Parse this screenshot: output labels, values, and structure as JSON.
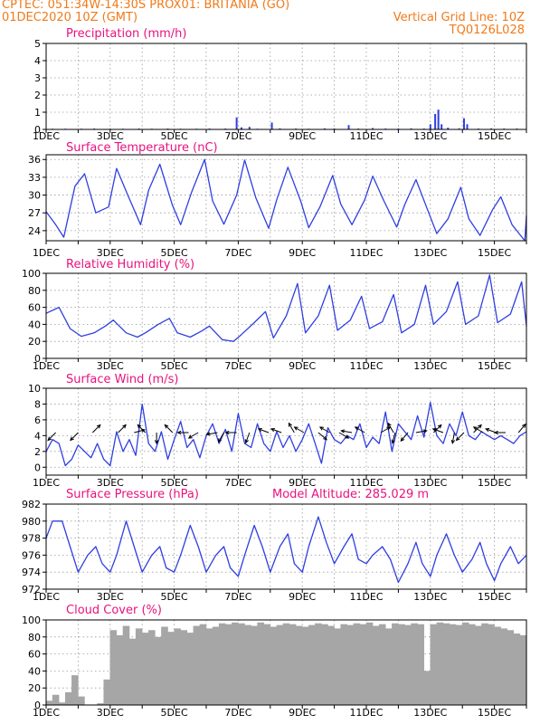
{
  "header": {
    "line1": "CPTEC:   051:34W-14:30S   PROX01: BRITANIA (GO)",
    "line2": "01DEC2020 10Z (GMT)",
    "grid_note": "Vertical Grid Line: 10Z",
    "code": "TQ0126L028"
  },
  "colors": {
    "header": "#f07a1a",
    "title": "#e8127e",
    "line": "#2f3fe0",
    "cloud": "#a6a6a6",
    "precip": "#2f3fe0"
  },
  "x_axis": {
    "labels": [
      "1DEC",
      "3DEC",
      "5DEC",
      "7DEC",
      "9DEC",
      "11DEC",
      "13DEC",
      "15DEC"
    ],
    "cut_label": "2020"
  },
  "chart_data": [
    {
      "type": "bar",
      "title": "Precipitation (mm/h)",
      "ylim": [
        0,
        5
      ],
      "yticks": [
        0,
        1,
        2,
        3,
        4,
        5
      ],
      "xlim": [
        0,
        15
      ],
      "x": [
        0.2,
        0.6,
        1.1,
        1.5,
        2.0,
        2.4,
        2.9,
        3.3,
        3.8,
        4.2,
        4.7,
        5.1,
        5.6,
        5.95,
        6.1,
        6.35,
        6.6,
        7.05,
        7.3,
        7.8,
        8.2,
        8.7,
        9.0,
        9.45,
        9.75,
        10.2,
        10.6,
        11.0,
        11.4,
        11.8,
        12.0,
        12.15,
        12.25,
        12.35,
        12.55,
        12.9,
        13.05,
        13.15,
        13.5,
        13.9,
        14.3,
        14.7
      ],
      "values": [
        0.04,
        0.04,
        0.04,
        0.05,
        0.04,
        0.04,
        0.05,
        0.04,
        0.05,
        0.04,
        0.04,
        0.05,
        0.05,
        0.7,
        0.12,
        0.15,
        0.04,
        0.4,
        0.06,
        0.05,
        0.04,
        0.06,
        0.05,
        0.25,
        0.05,
        0.08,
        0.05,
        0.05,
        0.06,
        0.05,
        0.3,
        0.9,
        1.15,
        0.3,
        0.1,
        0.06,
        0.65,
        0.3,
        0.05,
        0.06,
        0.05,
        0.05
      ]
    },
    {
      "type": "line",
      "title": "Surface Temperature (nC)",
      "ylim": [
        22.3,
        36.8
      ],
      "yticks": [
        24,
        27,
        30,
        33,
        36
      ],
      "xlim": [
        0,
        15
      ],
      "x": [
        0,
        0.3,
        0.55,
        0.9,
        1.2,
        1.55,
        1.95,
        2.2,
        2.55,
        2.95,
        3.2,
        3.55,
        3.95,
        4.2,
        4.55,
        4.95,
        5.2,
        5.55,
        5.95,
        6.2,
        6.55,
        6.95,
        7.2,
        7.55,
        7.95,
        8.2,
        8.55,
        8.95,
        9.2,
        9.55,
        9.95,
        10.2,
        10.55,
        10.95,
        11.2,
        11.55,
        11.95,
        12.2,
        12.55,
        12.95,
        13.2,
        13.55,
        13.95,
        14.2,
        14.55,
        14.95,
        15.0
      ],
      "values": [
        27.2,
        25.0,
        22.9,
        31.5,
        33.6,
        27.0,
        28.0,
        34.5,
        30.0,
        25.0,
        30.8,
        35.2,
        28.2,
        25.0,
        30.6,
        36.0,
        29.0,
        25.1,
        30.0,
        35.9,
        29.5,
        24.4,
        29.2,
        34.7,
        29.0,
        24.5,
        28.0,
        33.3,
        28.5,
        25.0,
        29.2,
        33.2,
        29.0,
        24.6,
        28.4,
        32.6,
        27.0,
        23.5,
        26.0,
        31.3,
        26.0,
        23.2,
        27.6,
        29.7,
        25.0,
        22.0,
        26.5
      ]
    },
    {
      "type": "line",
      "title": "Relative Humidity (%)",
      "ylim": [
        0,
        100
      ],
      "yticks": [
        0,
        20,
        40,
        60,
        80,
        100
      ],
      "xlim": [
        0,
        15
      ],
      "x": [
        0,
        0.4,
        0.75,
        1.1,
        1.5,
        1.85,
        2.1,
        2.5,
        2.85,
        3.1,
        3.5,
        3.85,
        4.1,
        4.5,
        4.85,
        5.1,
        5.5,
        5.85,
        6.1,
        6.5,
        6.85,
        7.1,
        7.5,
        7.85,
        8.1,
        8.5,
        8.85,
        9.1,
        9.5,
        9.85,
        10.1,
        10.5,
        10.85,
        11.1,
        11.5,
        11.85,
        12.1,
        12.5,
        12.85,
        13.1,
        13.5,
        13.85,
        14.1,
        14.5,
        14.85,
        15.0
      ],
      "values": [
        53,
        60,
        35,
        26,
        30,
        38,
        45,
        30,
        25,
        30,
        40,
        47,
        30,
        25,
        32,
        38,
        22,
        20,
        28,
        42,
        55,
        24,
        50,
        88,
        30,
        50,
        86,
        33,
        45,
        73,
        35,
        43,
        75,
        30,
        40,
        86,
        40,
        55,
        90,
        40,
        50,
        98,
        42,
        52,
        90,
        38
      ]
    },
    {
      "type": "line",
      "title": "Surface Wind (m/s)",
      "ylim": [
        -1,
        10
      ],
      "yticks": [
        0,
        2,
        4,
        6,
        8,
        10
      ],
      "xlim": [
        0,
        15
      ],
      "x": [
        0,
        0.2,
        0.4,
        0.6,
        0.8,
        1.0,
        1.2,
        1.4,
        1.6,
        1.8,
        2.0,
        2.2,
        2.4,
        2.6,
        2.8,
        3.0,
        3.2,
        3.4,
        3.6,
        3.8,
        4.0,
        4.2,
        4.4,
        4.6,
        4.8,
        5.0,
        5.2,
        5.4,
        5.6,
        5.8,
        6.0,
        6.2,
        6.4,
        6.6,
        6.8,
        7.0,
        7.2,
        7.4,
        7.6,
        7.8,
        8.0,
        8.2,
        8.4,
        8.6,
        8.8,
        9.0,
        9.2,
        9.4,
        9.6,
        9.8,
        10.0,
        10.2,
        10.4,
        10.6,
        10.8,
        11.0,
        11.2,
        11.4,
        11.6,
        11.8,
        12.0,
        12.2,
        12.4,
        12.6,
        12.8,
        13.0,
        13.2,
        13.4,
        13.6,
        13.8,
        14.0,
        14.2,
        14.4,
        14.6,
        14.8,
        15.0
      ],
      "values": [
        2.0,
        3.5,
        3.0,
        0.2,
        1.0,
        2.8,
        2.0,
        1.2,
        3.0,
        1.0,
        0.2,
        4.5,
        2.0,
        3.5,
        1.5,
        8.0,
        3.0,
        2.0,
        4.5,
        1.0,
        3.5,
        5.8,
        2.5,
        3.5,
        1.2,
        4.0,
        5.5,
        3.0,
        4.8,
        2.0,
        6.8,
        3.0,
        2.5,
        5.5,
        3.0,
        2.0,
        4.5,
        2.5,
        4.0,
        2.0,
        3.5,
        5.5,
        3.0,
        0.5,
        5.0,
        3.5,
        3.0,
        4.0,
        3.5,
        5.5,
        2.5,
        3.8,
        3.0,
        7.0,
        2.0,
        5.5,
        4.5,
        3.5,
        6.5,
        3.8,
        8.2,
        4.0,
        3.0,
        5.5,
        4.0,
        7.0,
        4.0,
        3.5,
        4.5,
        4.0,
        3.5,
        4.0,
        3.5,
        3.0,
        4.0,
        4.5
      ]
    },
    {
      "type": "line",
      "title": "Surface Pressure (hPa)",
      "annotation": "Model Altitude: 285.029 m",
      "ylim": [
        972,
        982
      ],
      "yticks": [
        972,
        974,
        976,
        978,
        980,
        982
      ],
      "xlim": [
        0,
        15
      ],
      "x": [
        0,
        0.2,
        0.5,
        0.75,
        1.0,
        1.3,
        1.55,
        1.75,
        2.0,
        2.2,
        2.5,
        2.75,
        3.0,
        3.3,
        3.55,
        3.75,
        4.0,
        4.2,
        4.5,
        4.75,
        5.0,
        5.3,
        5.55,
        5.75,
        6.0,
        6.2,
        6.5,
        6.75,
        7.0,
        7.3,
        7.55,
        7.75,
        8.0,
        8.2,
        8.5,
        8.75,
        9.0,
        9.3,
        9.55,
        9.75,
        10.0,
        10.2,
        10.5,
        10.75,
        11.0,
        11.3,
        11.55,
        11.75,
        12.0,
        12.2,
        12.5,
        12.75,
        13.0,
        13.3,
        13.55,
        13.75,
        14.0,
        14.2,
        14.5,
        14.75,
        15.0
      ],
      "values": [
        978.0,
        980.0,
        980.0,
        977.0,
        974.0,
        976.0,
        977.0,
        975.0,
        974.0,
        976.0,
        980.0,
        977.0,
        974.0,
        976.0,
        977.0,
        974.5,
        974.0,
        976.0,
        979.5,
        977.0,
        974.0,
        976.0,
        977.0,
        974.5,
        973.5,
        976.0,
        979.5,
        977.0,
        974.0,
        977.0,
        978.5,
        975.0,
        974.0,
        977.0,
        980.5,
        977.5,
        975.0,
        977.0,
        978.5,
        975.5,
        975.0,
        976.0,
        977.0,
        975.5,
        972.8,
        975.0,
        977.5,
        975.0,
        973.5,
        976.0,
        978.5,
        976.0,
        974.0,
        975.5,
        977.5,
        975.0,
        973.0,
        975.0,
        977.0,
        975.0,
        976.0
      ]
    },
    {
      "type": "bar",
      "title": "Cloud Cover (%)",
      "ylim": [
        0,
        100
      ],
      "yticks": [
        0,
        20,
        40,
        60,
        80,
        100
      ],
      "xlim": [
        0,
        15
      ],
      "x": [
        0.1,
        0.3,
        0.5,
        0.7,
        0.9,
        1.1,
        1.3,
        1.5,
        1.7,
        1.9,
        2.1,
        2.3,
        2.5,
        2.7,
        2.9,
        3.1,
        3.3,
        3.5,
        3.7,
        3.9,
        4.1,
        4.3,
        4.5,
        4.7,
        4.9,
        5.1,
        5.3,
        5.5,
        5.7,
        5.9,
        6.1,
        6.3,
        6.5,
        6.7,
        6.9,
        7.1,
        7.3,
        7.5,
        7.7,
        7.9,
        8.1,
        8.3,
        8.5,
        8.7,
        8.9,
        9.1,
        9.3,
        9.5,
        9.7,
        9.9,
        10.1,
        10.3,
        10.5,
        10.7,
        10.9,
        11.1,
        11.3,
        11.5,
        11.7,
        11.9,
        12.1,
        12.3,
        12.5,
        12.7,
        12.9,
        13.1,
        13.3,
        13.5,
        13.7,
        13.9,
        14.1,
        14.3,
        14.5,
        14.7,
        14.9
      ],
      "values": [
        5,
        12,
        3,
        15,
        35,
        10,
        0,
        0,
        2,
        30,
        88,
        82,
        93,
        78,
        90,
        85,
        88,
        80,
        92,
        86,
        90,
        88,
        85,
        93,
        95,
        90,
        92,
        96,
        95,
        97,
        96,
        94,
        93,
        97,
        95,
        92,
        94,
        96,
        95,
        93,
        92,
        94,
        96,
        95,
        93,
        90,
        95,
        94,
        96,
        95,
        97,
        93,
        95,
        90,
        96,
        95,
        94,
        96,
        95,
        40,
        95,
        97,
        96,
        95,
        94,
        97,
        95,
        93,
        96,
        95,
        92,
        90,
        88,
        84,
        82
      ]
    }
  ],
  "wind_arrows": [
    {
      "x": 0.3,
      "dir": 225
    },
    {
      "x": 1.0,
      "dir": 225
    },
    {
      "x": 1.45,
      "dir": 45
    },
    {
      "x": 2.25,
      "dir": 45
    },
    {
      "x": 2.75,
      "dir": 75
    },
    {
      "x": 3.1,
      "dir": 315
    },
    {
      "x": 3.45,
      "dir": 180
    },
    {
      "x": 3.95,
      "dir": 315
    },
    {
      "x": 4.45,
      "dir": 270
    },
    {
      "x": 4.75,
      "dir": 240
    },
    {
      "x": 5.35,
      "dir": 260
    },
    {
      "x": 5.55,
      "dir": 210
    },
    {
      "x": 5.95,
      "dir": 270
    },
    {
      "x": 6.35,
      "dir": 200
    },
    {
      "x": 6.95,
      "dir": 290
    },
    {
      "x": 7.35,
      "dir": 290
    },
    {
      "x": 7.75,
      "dir": 330
    },
    {
      "x": 8.05,
      "dir": 300
    },
    {
      "x": 8.5,
      "dir": 130
    },
    {
      "x": 8.85,
      "dir": 300
    },
    {
      "x": 9.15,
      "dir": 120
    },
    {
      "x": 9.55,
      "dir": 280
    },
    {
      "x": 9.95,
      "dir": 300
    },
    {
      "x": 10.45,
      "dir": 60
    },
    {
      "x": 10.85,
      "dir": 330
    },
    {
      "x": 10.9,
      "dir": 195
    },
    {
      "x": 11.3,
      "dir": 220
    },
    {
      "x": 11.55,
      "dir": 80
    },
    {
      "x": 12.1,
      "dir": 45
    },
    {
      "x": 12.4,
      "dir": 290
    },
    {
      "x": 12.75,
      "dir": 190
    },
    {
      "x": 13.05,
      "dir": 225
    },
    {
      "x": 13.35,
      "dir": 45
    },
    {
      "x": 13.65,
      "dir": 300
    },
    {
      "x": 14.05,
      "dir": 290
    },
    {
      "x": 14.35,
      "dir": 270
    },
    {
      "x": 14.75,
      "dir": 40
    }
  ]
}
